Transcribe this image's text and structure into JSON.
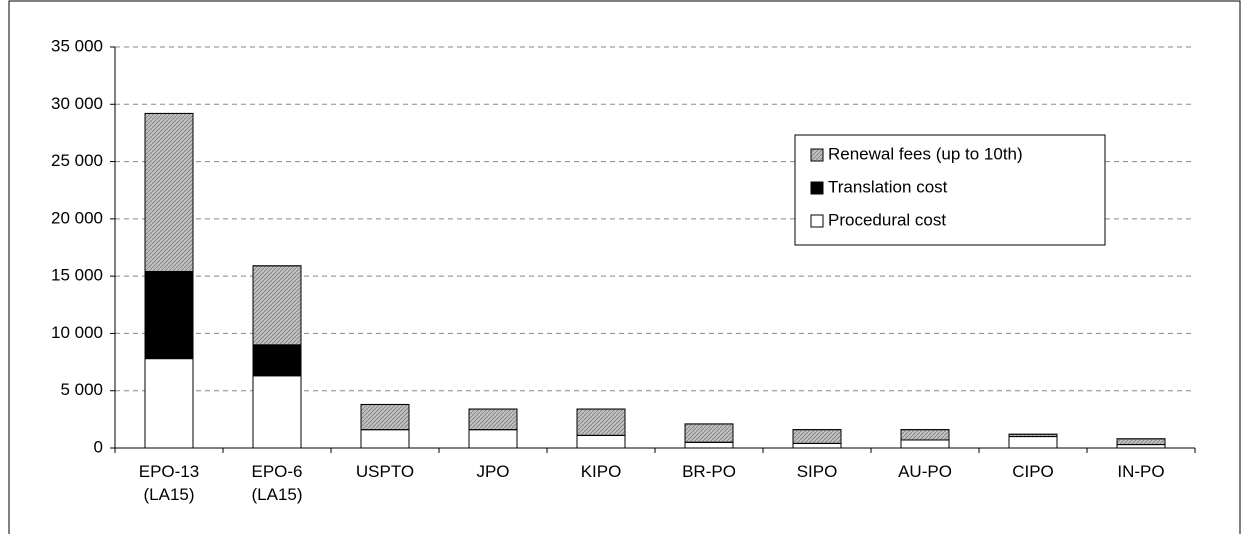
{
  "chart_data": {
    "type": "stacked_bar",
    "categories": [
      "EPO-13 (LA15)",
      "EPO-6 (LA15)",
      "USPTO",
      "JPO",
      "KIPO",
      "BR-PO",
      "SIPO",
      "AU-PO",
      "CIPO",
      "IN-PO"
    ],
    "series": [
      {
        "name": "Procedural cost",
        "color": "#ffffff",
        "values": [
          7800,
          6300,
          1600,
          1600,
          1100,
          500,
          400,
          700,
          1000,
          300
        ]
      },
      {
        "name": "Translation cost",
        "color": "#000000",
        "values": [
          7600,
          2700,
          0,
          0,
          0,
          0,
          0,
          0,
          0,
          0
        ]
      },
      {
        "name": "Renewal fees (up to 10th)",
        "color": "#c0c0c0",
        "values": [
          13800,
          6900,
          2200,
          1800,
          2300,
          1600,
          1200,
          900,
          200,
          500
        ]
      }
    ],
    "ylim": [
      0,
      35000
    ],
    "yticks": [
      0,
      {
        "value": 5000,
        "label": "5 000"
      },
      {
        "value": 10000,
        "label": "10 000"
      },
      {
        "value": 15000,
        "label": "15 000"
      },
      {
        "value": 20000,
        "label": "20 000"
      },
      {
        "value": 25000,
        "label": "25 000"
      },
      {
        "value": 30000,
        "label": "30 000"
      },
      {
        "value": 35000,
        "label": "35 000"
      }
    ],
    "grid": true
  }
}
